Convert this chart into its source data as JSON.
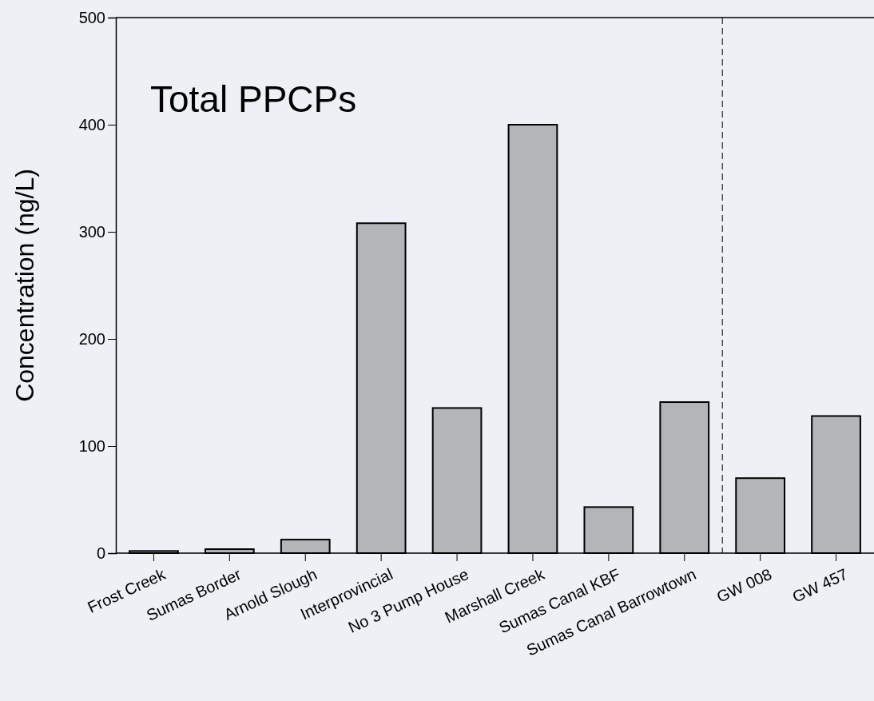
{
  "chart_data": {
    "type": "bar",
    "title": "Total PPCPs",
    "ylabel": "Concentration (ng/L)",
    "categories": [
      "Frost Creek",
      "Sumas Border",
      "Arnold Slough",
      "Interprovincial",
      "No 3 Pump House",
      "Marshall Creek",
      "Sumas Canal KBF",
      "Sumas Canal Barrowtown",
      "GW 008",
      "GW 457"
    ],
    "values": [
      2,
      3.7,
      12.6,
      308,
      135.5,
      400,
      43,
      141,
      70,
      128
    ],
    "color": "#b3b5b9",
    "ylim": [
      0,
      500
    ],
    "yticks": [
      0,
      100,
      200,
      300,
      400,
      500
    ],
    "grid": false
  }
}
